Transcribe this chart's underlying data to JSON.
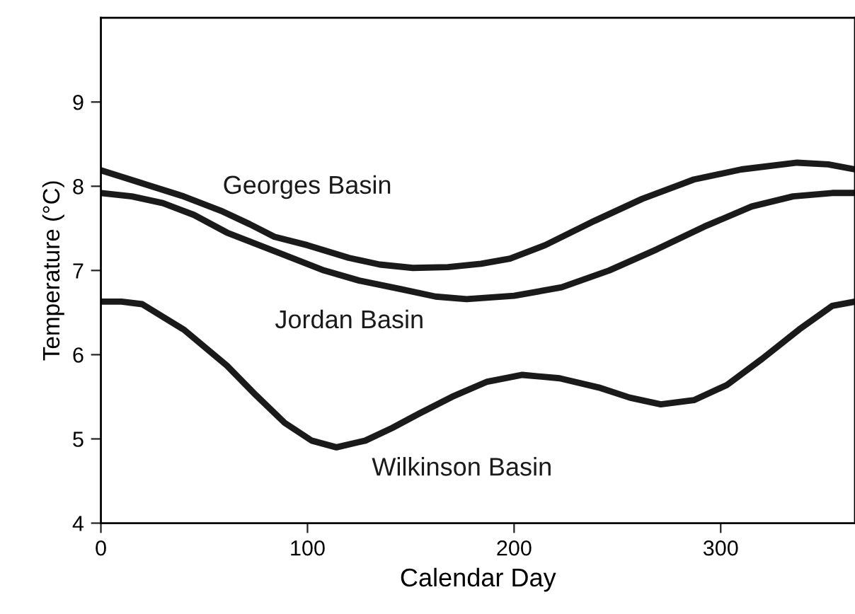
{
  "chart_data": {
    "type": "line",
    "xlabel": "Calendar Day",
    "ylabel": "Temperature (°C)",
    "xlim": [
      0,
      365
    ],
    "xticks": [
      0,
      100,
      200,
      300
    ],
    "ylim": [
      4,
      10
    ],
    "yticks": [
      4,
      5,
      6,
      7,
      8,
      9
    ],
    "grid": false,
    "marker": "none",
    "line_style": "solid",
    "series": [
      {
        "name": "Georges Basin",
        "color": "#1a1a1a",
        "x": [
          0,
          22,
          40,
          58,
          72,
          84,
          100,
          120,
          135,
          151,
          168,
          184,
          198,
          215,
          239,
          262,
          287,
          310,
          337,
          352,
          365
        ],
        "values": [
          8.19,
          8.02,
          7.88,
          7.71,
          7.55,
          7.4,
          7.3,
          7.15,
          7.07,
          7.03,
          7.04,
          7.08,
          7.14,
          7.3,
          7.59,
          7.85,
          8.08,
          8.2,
          8.28,
          8.26,
          8.2
        ]
      },
      {
        "name": "Jordan Basin",
        "color": "#1a1a1a",
        "x": [
          0,
          15,
          30,
          45,
          61,
          85,
          108,
          125,
          145,
          162,
          177,
          200,
          223,
          246,
          269,
          292,
          315,
          335,
          354,
          365
        ],
        "values": [
          7.92,
          7.88,
          7.8,
          7.66,
          7.45,
          7.22,
          7.0,
          6.88,
          6.78,
          6.69,
          6.66,
          6.7,
          6.8,
          7.0,
          7.25,
          7.52,
          7.76,
          7.88,
          7.92,
          7.92
        ]
      },
      {
        "name": "Wilkinson Basin",
        "color": "#1a1a1a",
        "x": [
          0,
          10,
          20,
          40,
          61,
          75,
          89,
          102,
          114,
          128,
          141,
          154,
          170,
          187,
          204,
          222,
          241,
          256,
          271,
          287,
          303,
          320,
          338,
          354,
          365
        ],
        "values": [
          6.63,
          6.63,
          6.6,
          6.3,
          5.87,
          5.52,
          5.19,
          4.98,
          4.9,
          4.98,
          5.13,
          5.3,
          5.5,
          5.68,
          5.76,
          5.72,
          5.61,
          5.49,
          5.41,
          5.46,
          5.64,
          5.95,
          6.3,
          6.58,
          6.63
        ]
      }
    ]
  }
}
